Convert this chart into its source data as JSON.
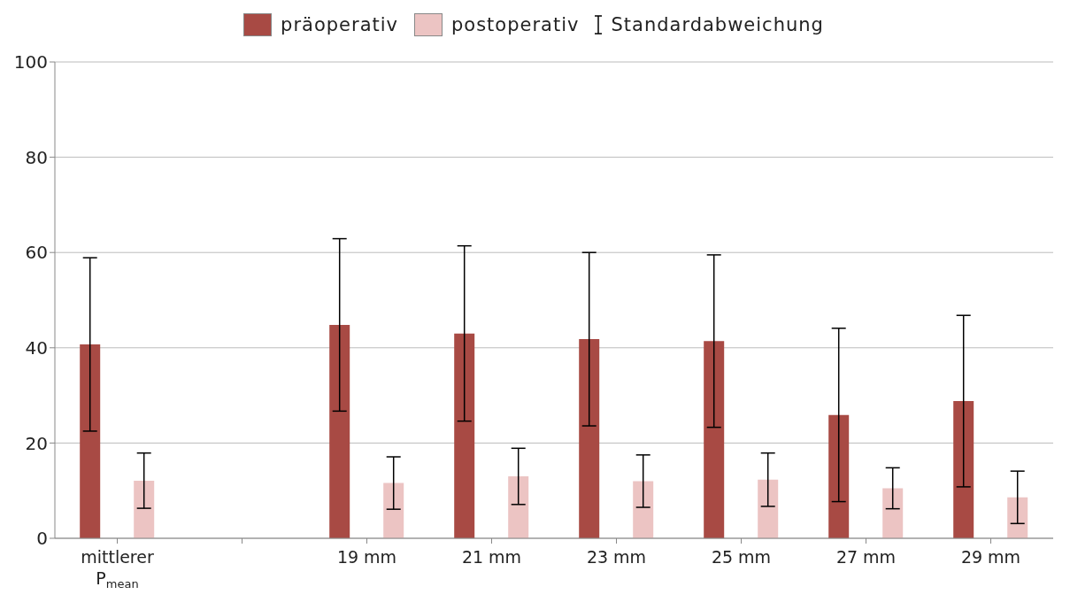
{
  "chart_data": {
    "type": "bar",
    "categories": [
      "mittlerer P$_{mean}$",
      null,
      "19 mm",
      "21 mm",
      "23 mm",
      "25 mm",
      "27 mm",
      "29 mm"
    ],
    "series": [
      {
        "name": "präoperativ",
        "color": "#a84a44",
        "values": [
          40.7,
          null,
          44.8,
          43.0,
          41.8,
          41.4,
          25.9,
          28.8
        ],
        "errors": [
          18.2,
          null,
          18.1,
          18.4,
          18.2,
          18.1,
          18.2,
          18.0
        ]
      },
      {
        "name": "postoperativ",
        "color": "#ecc4c3",
        "values": [
          12.1,
          null,
          11.6,
          13.0,
          12.0,
          12.3,
          10.5,
          8.6
        ],
        "errors": [
          5.8,
          null,
          5.5,
          5.9,
          5.5,
          5.6,
          4.3,
          5.5
        ]
      }
    ],
    "annotations": [
      "Standardabweichung"
    ],
    "ylim": [
      0,
      100
    ],
    "yticks": [
      0,
      20,
      40,
      60,
      80,
      100
    ],
    "grid": "y",
    "legend": "top"
  }
}
